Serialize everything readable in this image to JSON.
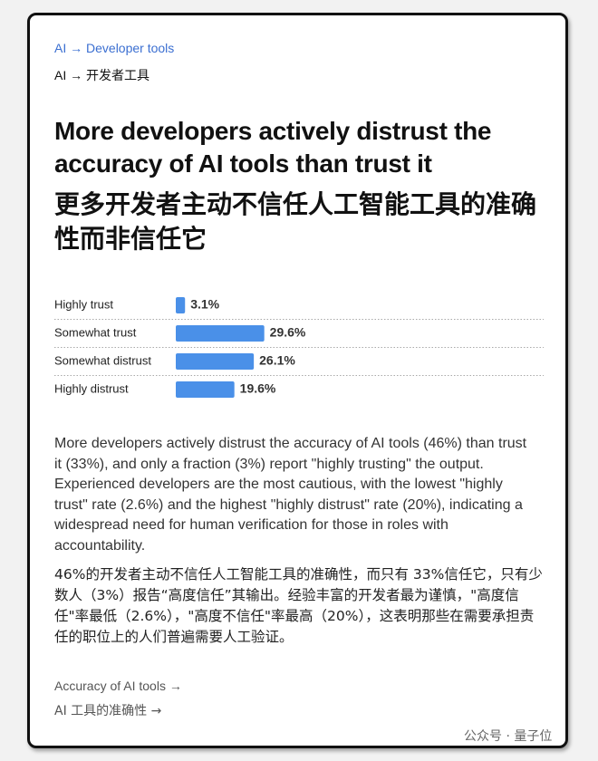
{
  "breadcrumb_en": "AI → Developer tools",
  "breadcrumb_zh": "AI → 开发者工具",
  "title_en": "More developers actively distrust the accuracy of AI tools than trust it",
  "title_zh": "更多开发者主动不信任人工智能工具的准确性而非信任它",
  "chart_data": {
    "type": "bar",
    "orientation": "horizontal",
    "categories": [
      "Highly trust",
      "Somewhat trust",
      "Somewhat distrust",
      "Highly distrust"
    ],
    "values": [
      3.1,
      29.6,
      26.1,
      19.6
    ],
    "value_labels": [
      "3.1%",
      "29.6%",
      "26.1%",
      "19.6%"
    ],
    "color": "#4a90e8"
  },
  "paragraph_en": "More developers actively distrust the accuracy of AI tools (46%) than trust it (33%), and only a fraction (3%) report \"highly trusting\" the output. Experienced developers are the most cautious, with the lowest \"highly trust\" rate (2.6%) and the highest \"highly distrust\" rate (20%), indicating a widespread need for human verification for those in roles with accountability.",
  "paragraph_zh": "46%的开发者主动不信任人工智能工具的准确性，而只有 33%信任它，只有少数人（3%）报告“高度信任”其输出。经验丰富的开发者最为谨慎，\"高度信任\"率最低（2.6%），\"高度不信任\"率最高（20%），这表明那些在需要承担责任的职位上的人们普遍需要人工验证。",
  "link_en": "Accuracy of AI tools →",
  "link_zh": "AI 工具的准确性 →",
  "watermark": "公众号 · 量子位"
}
